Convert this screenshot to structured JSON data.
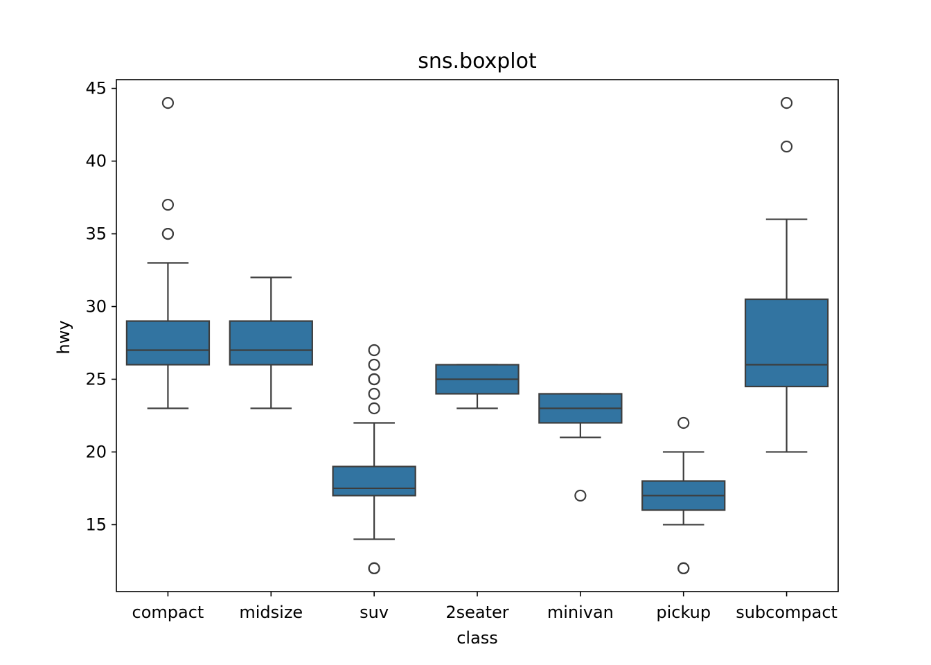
{
  "chart_data": {
    "type": "boxplot",
    "title": "sns.boxplot",
    "xlabel": "class",
    "ylabel": "hwy",
    "ylim": [
      10.4,
      45.6
    ],
    "yticks": [
      15,
      20,
      25,
      30,
      35,
      40,
      45
    ],
    "grid": false,
    "color": "#3274a1",
    "edge_color": "#3d3d3d",
    "categories": [
      "compact",
      "midsize",
      "suv",
      "2seater",
      "minivan",
      "pickup",
      "subcompact"
    ],
    "boxes": [
      {
        "category": "compact",
        "whislo": 23,
        "q1": 26,
        "med": 27,
        "q3": 29,
        "whishi": 33,
        "fliers": [
          35,
          35,
          37,
          44
        ]
      },
      {
        "category": "midsize",
        "whislo": 23,
        "q1": 26,
        "med": 27,
        "q3": 29,
        "whishi": 32,
        "fliers": []
      },
      {
        "category": "suv",
        "whislo": 14,
        "q1": 17,
        "med": 17.5,
        "q3": 19,
        "whishi": 22,
        "fliers": [
          12,
          12,
          23,
          24,
          25,
          25,
          26,
          27
        ]
      },
      {
        "category": "2seater",
        "whislo": 23,
        "q1": 24,
        "med": 25,
        "q3": 26,
        "whishi": 26,
        "fliers": []
      },
      {
        "category": "minivan",
        "whislo": 21,
        "q1": 22,
        "med": 23,
        "q3": 24,
        "whishi": 24,
        "fliers": [
          17
        ]
      },
      {
        "category": "pickup",
        "whislo": 15,
        "q1": 16,
        "med": 17,
        "q3": 18,
        "whishi": 20,
        "fliers": [
          12,
          12,
          22
        ]
      },
      {
        "category": "subcompact",
        "whislo": 20,
        "q1": 24.5,
        "med": 26,
        "q3": 30.5,
        "whishi": 36,
        "fliers": [
          41,
          44
        ]
      }
    ]
  }
}
